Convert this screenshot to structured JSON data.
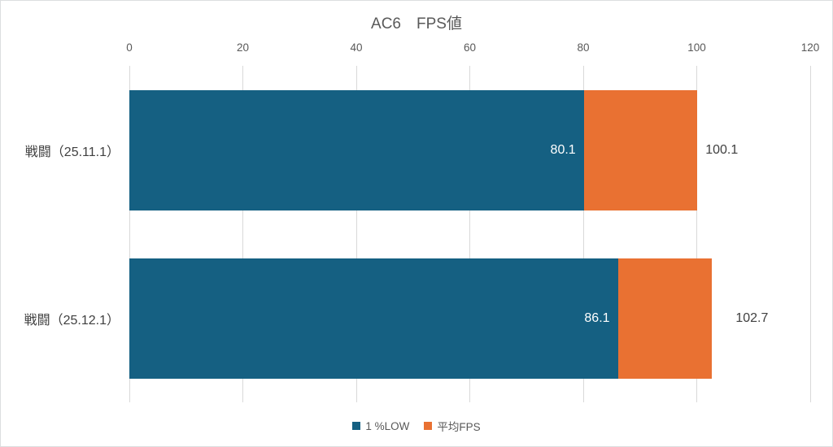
{
  "chart_data": {
    "type": "bar",
    "orientation": "horizontal",
    "title": "AC6　FPS値",
    "categories": [
      "戦闘（25.11.1）",
      "戦闘（25.12.1）"
    ],
    "series": [
      {
        "name": "1 %LOW",
        "color": "#156082",
        "values": [
          80.1,
          86.1
        ],
        "label_position": "inside-end",
        "label_color": "#ffffff"
      },
      {
        "name": "平均FPS",
        "color": "#e97132",
        "values": [
          100.1,
          102.7
        ],
        "label_position": "outside-end",
        "label_color": "#404040"
      }
    ],
    "xlim": [
      0,
      120
    ],
    "xticks": [
      0,
      20,
      40,
      60,
      80,
      100,
      120
    ],
    "xaxis_position": "top",
    "grid": true,
    "bar_overlap": "low-series-drawn-over-average-series",
    "legend_position": "bottom"
  },
  "colors": {
    "grid": "#d9d9d9",
    "axis_text": "#595959",
    "title_text": "#595959",
    "data_label_outside": "#404040",
    "data_label_inside": "#ffffff",
    "background": "#ffffff",
    "border": "#dcdee0"
  }
}
